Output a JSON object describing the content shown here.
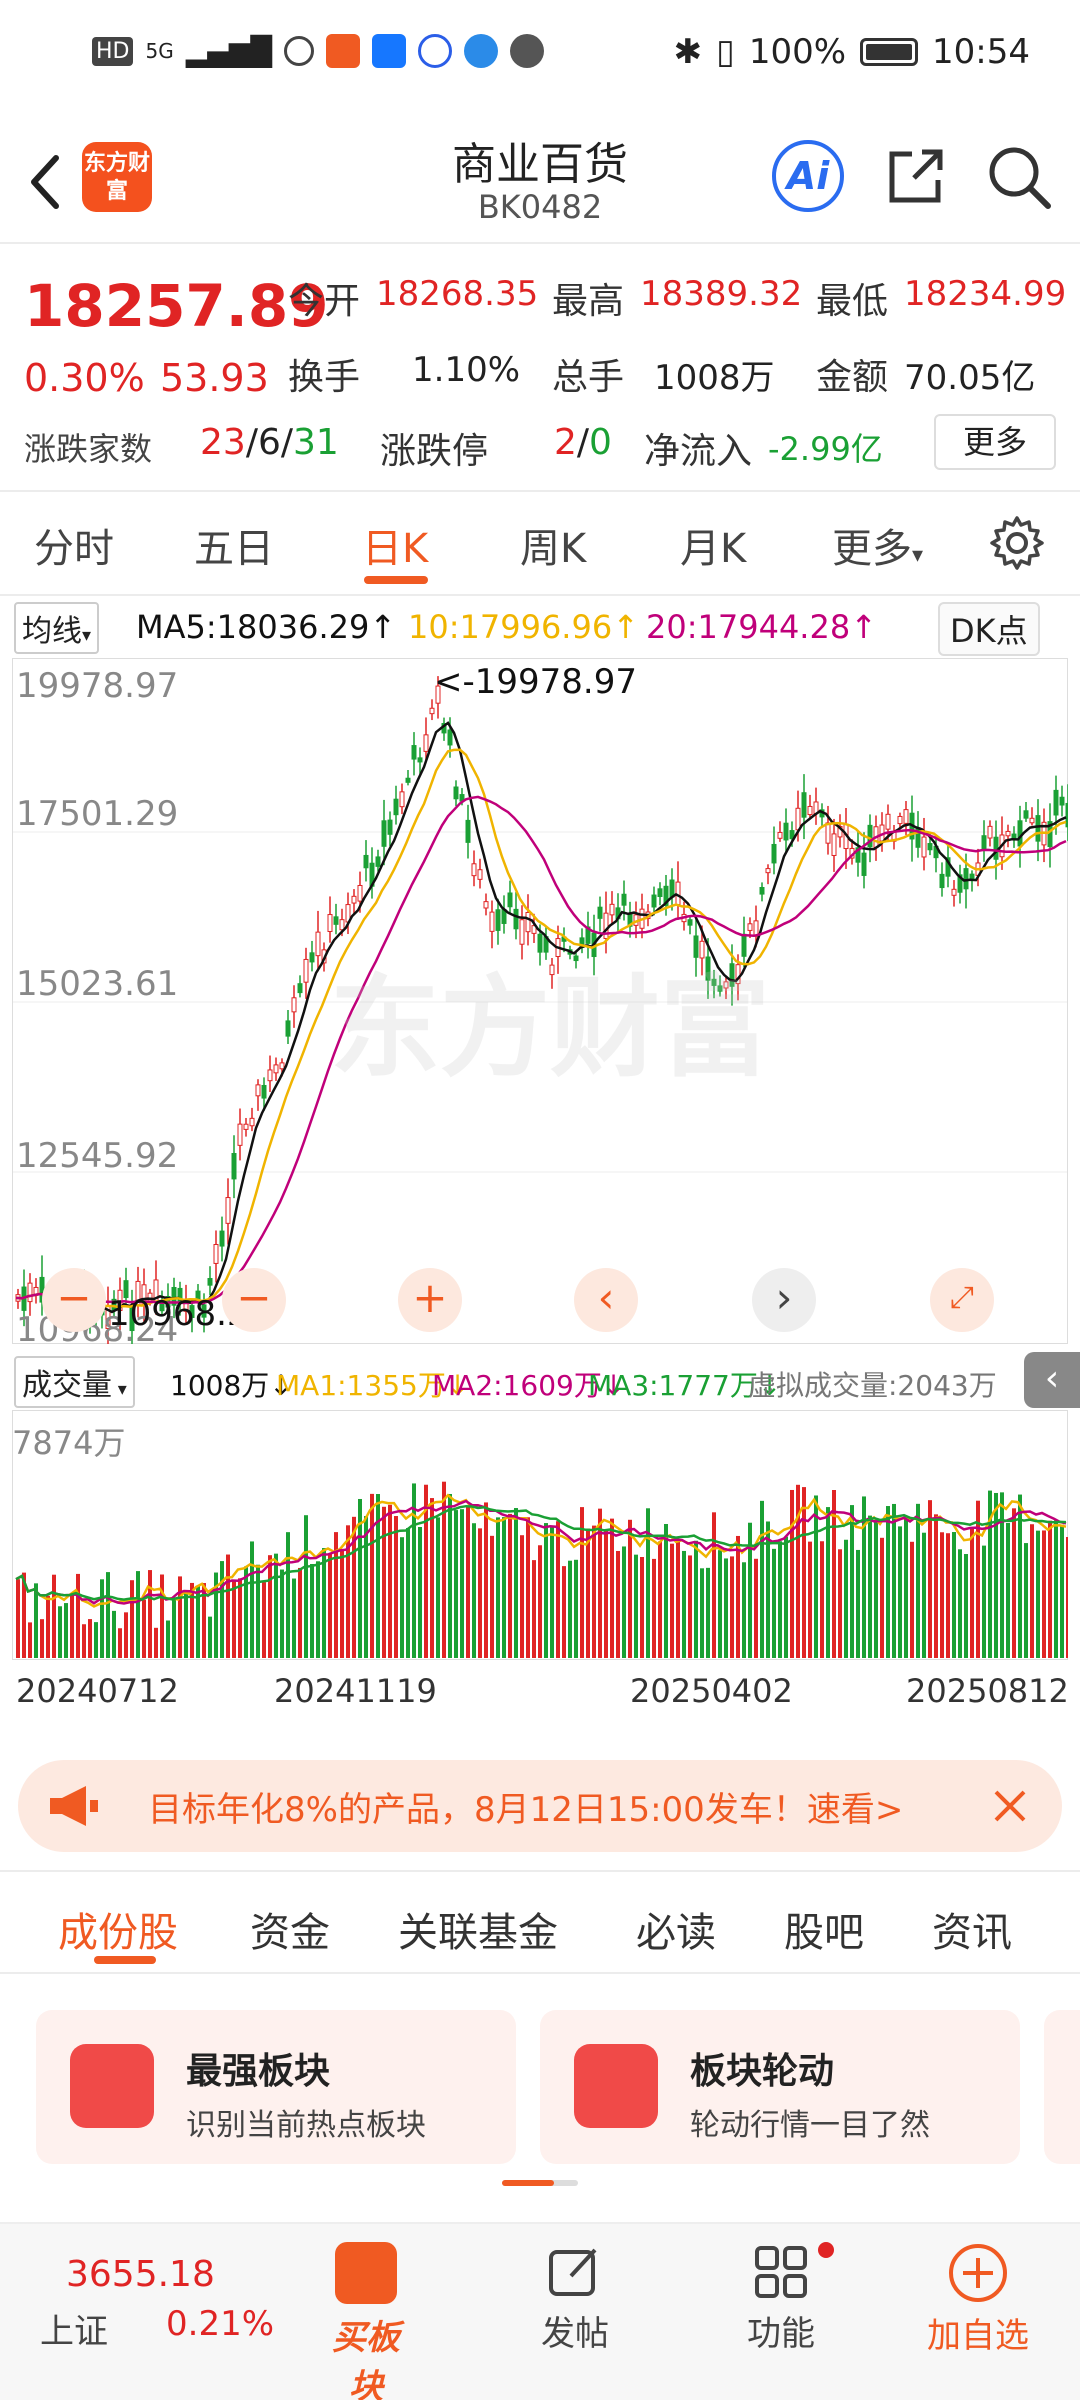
{
  "status": {
    "hd": "HD",
    "signal": "5G",
    "battery": "100%",
    "time": "10:54"
  },
  "header": {
    "logo": "东方财富",
    "title": "商业百货",
    "code": "BK0482"
  },
  "quote": {
    "price": "18257.89",
    "pct": "0.30%",
    "chg": "53.93",
    "open_label": "今开",
    "open": "18268.35",
    "high_label": "最高",
    "high": "18389.32",
    "low_label": "最低",
    "low": "18234.99",
    "turnover_label": "换手",
    "turnover": "1.10%",
    "volume_label": "总手",
    "volume": "1008万",
    "amount_label": "金额",
    "amount": "70.05亿",
    "updown_label": "涨跌家数",
    "up": "23",
    "flat": "6",
    "down": "31",
    "limit_label": "涨跌停",
    "limit_up": "2",
    "limit_down": "0",
    "netflow_label": "净流入",
    "netflow": "-2.99亿",
    "more": "更多"
  },
  "tabs": [
    "分时",
    "五日",
    "日K",
    "周K",
    "月K",
    "更多"
  ],
  "ma": {
    "selector": "均线",
    "ma5": "MA5:18036.29↑",
    "ma10": "10:17996.96↑",
    "ma20": "20:17944.28↑",
    "dk": "DK点"
  },
  "price_axis": [
    "19978.97",
    "17501.29",
    "15023.61",
    "12545.92"
  ],
  "price_max_label": "<-19978.97",
  "price_min_label": "10968.24",
  "price_min_axis": "10968.24",
  "volume": {
    "selector": "成交量",
    "vol": "1008万↓",
    "ma1": "MA1:1355万↓",
    "ma2": "MA2:1609万↓",
    "ma3": "MA3:1777万↓",
    "virtual": "虚拟成交量:2043万",
    "axis_max": "7874万"
  },
  "dates": [
    "20240712",
    "20241119",
    "20250402",
    "20250812"
  ],
  "watermark": "东方财富",
  "banner": {
    "text": "目标年化8%的产品，8月12日15:00发车！速看>"
  },
  "subtabs": [
    "成份股",
    "资金",
    "关联基金",
    "必读",
    "股吧",
    "资讯"
  ],
  "cards": [
    {
      "title": "最强板块",
      "sub": "识别当前热点板块"
    },
    {
      "title": "板块轮动",
      "sub": "轮动行情一目了然"
    }
  ],
  "bottom": {
    "index_value": "3655.18",
    "index_name": "上证",
    "index_pct": "0.21%",
    "buy": "买板块",
    "post": "发帖",
    "func": "功能",
    "add": "加自选"
  },
  "colors": {
    "up": "#e02424",
    "down": "#1aa034",
    "accent": "#f05a22",
    "ma5": "#111111",
    "ma10": "#f0b400",
    "ma20": "#c0007a"
  }
}
